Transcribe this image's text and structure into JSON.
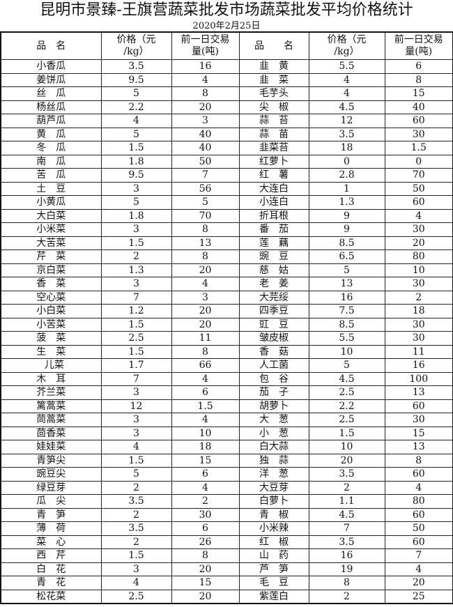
{
  "title": "昆明市景臻-王旗营蔬菜批发市场蔬菜批发平均价格统计",
  "date": "2020年2月25日",
  "headers": [
    "品　名",
    "价格（元\n/kg）",
    "前一日交易\n量(吨)",
    "品　　名",
    "价格（元\n/kg）",
    "前一日交易\n量(吨)"
  ],
  "rows": [
    [
      "小香瓜",
      "3.5",
      "16",
      "韭　黄",
      "5.5",
      "6"
    ],
    [
      "姜饼瓜",
      "9.5",
      "4",
      "韭　菜",
      "4",
      "8"
    ],
    [
      "丝　瓜",
      "5",
      "8",
      "毛芋头",
      "4",
      "15"
    ],
    [
      "杨丝瓜",
      "2.2",
      "20",
      "尖　椒",
      "4.5",
      "40"
    ],
    [
      "葫芦瓜",
      "4",
      "3",
      "蒜　苔",
      "12",
      "60"
    ],
    [
      "黄　瓜",
      "5",
      "40",
      "蒜　苗",
      "3.5",
      "30"
    ],
    [
      "冬　瓜",
      "1.5",
      "40",
      "韭菜苔",
      "18",
      "1.5"
    ],
    [
      "南　瓜",
      "1.8",
      "50",
      "红萝卜",
      "0",
      "0"
    ],
    [
      "苦　瓜",
      "9.5",
      "7",
      "红　薯",
      "2.8",
      "70"
    ],
    [
      "土　豆",
      "3",
      "56",
      "大连白",
      "1",
      "50"
    ],
    [
      "小黄瓜",
      "5",
      "5",
      "小连白",
      "1.3",
      "60"
    ],
    [
      "大白菜",
      "1.8",
      "70",
      "折耳根",
      "9",
      "4"
    ],
    [
      "小米菜",
      "3",
      "8",
      "番　茄",
      "9",
      "30"
    ],
    [
      "大苦菜",
      "1.5",
      "13",
      "莲　藕",
      "8.5",
      "20"
    ],
    [
      "芹　菜",
      "2",
      "8",
      "豌　豆",
      "6.5",
      "80"
    ],
    [
      "京白菜",
      "1.3",
      "20",
      "慈　姑",
      "5",
      "10"
    ],
    [
      "香　菜",
      "3",
      "4",
      "老　姜",
      "13",
      "30"
    ],
    [
      "空心菜",
      "7",
      "3",
      "大芫绥",
      "16",
      "2"
    ],
    [
      "小白菜",
      "1.2",
      "20",
      "四季豆",
      "7.5",
      "18"
    ],
    [
      "小苦菜",
      "1.5",
      "20",
      "豇　豆",
      "8.5",
      "30"
    ],
    [
      "菠　菜",
      "2.5",
      "11",
      "皱皮椒",
      "5.5",
      "30"
    ],
    [
      "生　菜",
      "1.5",
      "8",
      "香　菇",
      "10",
      "11"
    ],
    [
      "  儿菜",
      "1.7",
      "66",
      "人工菌",
      "5",
      "16"
    ],
    [
      "木　耳",
      "7",
      "4",
      "包　谷",
      "4.5",
      "100"
    ],
    [
      "芥兰菜",
      "3",
      "6",
      "茄　子",
      "2.5",
      "13"
    ],
    [
      "篱蒿菜",
      "12",
      "1.5",
      "胡萝卜",
      "2.2",
      "60"
    ],
    [
      "茼蒿菜",
      "3",
      "4",
      "大　葱",
      "2.5",
      "30"
    ],
    [
      "茴香菜",
      "3",
      "10",
      "小　葱",
      "1.5",
      "15"
    ],
    [
      "娃娃菜",
      "4",
      "18",
      "白大蒜",
      "10",
      "13"
    ],
    [
      "青笋尖",
      "1.5",
      "15",
      "独　蒜",
      "20",
      "8"
    ],
    [
      "豌豆尖",
      "5",
      "6",
      "洋　葱",
      "3.5",
      "60"
    ],
    [
      "绿豆芽",
      "2",
      "4",
      "大豆芽",
      "2",
      "4"
    ],
    [
      "瓜　尖",
      "3.5",
      "2",
      "白萝卜",
      "1.1",
      "80"
    ],
    [
      "青　笋",
      "2",
      "30",
      "青　椒",
      "4.5",
      "60"
    ],
    [
      "薄　荷",
      "3.5",
      "6",
      "小米辣",
      "7",
      "50"
    ],
    [
      "菜　心",
      "2",
      "26",
      "红　椒",
      "3.5",
      "60"
    ],
    [
      "西　芹",
      "1.5",
      "8",
      "山　药",
      "16",
      "7"
    ],
    [
      "白　花",
      "3",
      "20",
      "芦　笋",
      "19",
      "4"
    ],
    [
      "青　花",
      "4",
      "15",
      "毛　豆",
      "8",
      "20"
    ],
    [
      "松花菜",
      "2.5",
      "20",
      "紫莲白",
      "2",
      "25"
    ]
  ]
}
